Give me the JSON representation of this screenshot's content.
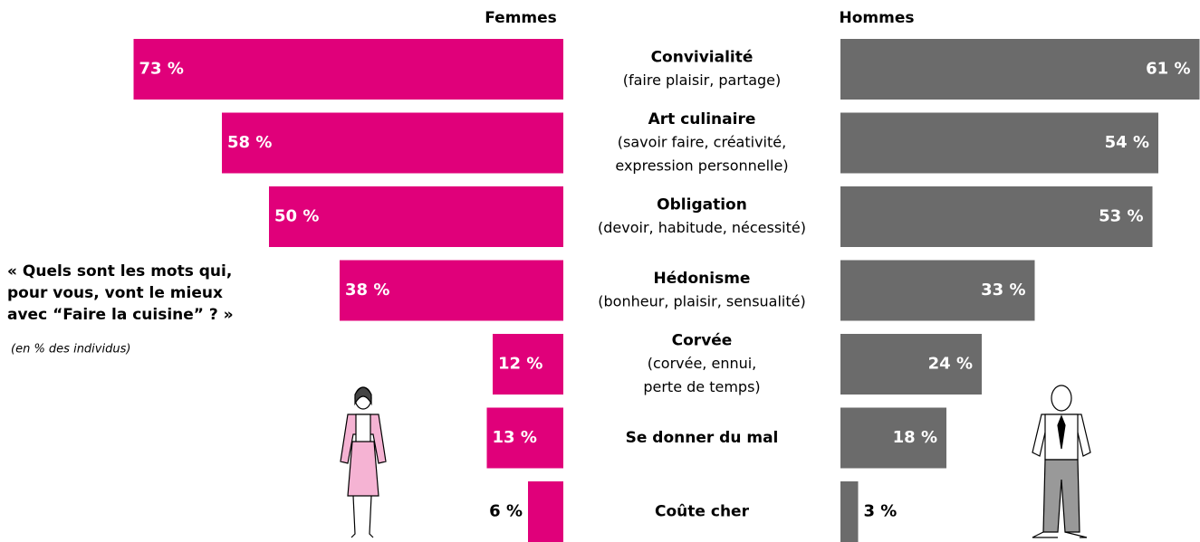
{
  "chart_data": {
    "type": "butterfly",
    "question": [
      "« Quels sont les mots qui,",
      "pour vous, vont le mieux",
      "avec “Faire la cuisine” ? »"
    ],
    "note": "(en % des individus)",
    "categories": [
      "Convivialité",
      "Art culinaire",
      "Obligation",
      "Hédonisme",
      "Corvée",
      "Se donner du mal",
      "Coûte cher"
    ],
    "descriptions": [
      [
        "(faire plaisir, partage)"
      ],
      [
        "(savoir faire, créativité,",
        "expression personnelle)"
      ],
      [
        "(devoir, habitude, nécessité)"
      ],
      [
        "(bonheur, plaisir, sensualité)"
      ],
      [
        "(corvée, ennui,",
        "perte de temps)"
      ],
      [],
      []
    ],
    "series": [
      {
        "name": "Femmes",
        "color": "#e0007a",
        "values": [
          73,
          58,
          50,
          38,
          12,
          13,
          6
        ],
        "value_labels": [
          "73 %",
          "58 %",
          "50 %",
          "38 %",
          "12 %",
          "13 %",
          "6 %"
        ]
      },
      {
        "name": "Hommes",
        "color": "#6b6b6b",
        "values": [
          61,
          54,
          53,
          33,
          24,
          18,
          3
        ],
        "value_labels": [
          "61 %",
          "54 %",
          "53 %",
          "33 %",
          "24 %",
          "18 %",
          "3 %"
        ]
      }
    ]
  }
}
